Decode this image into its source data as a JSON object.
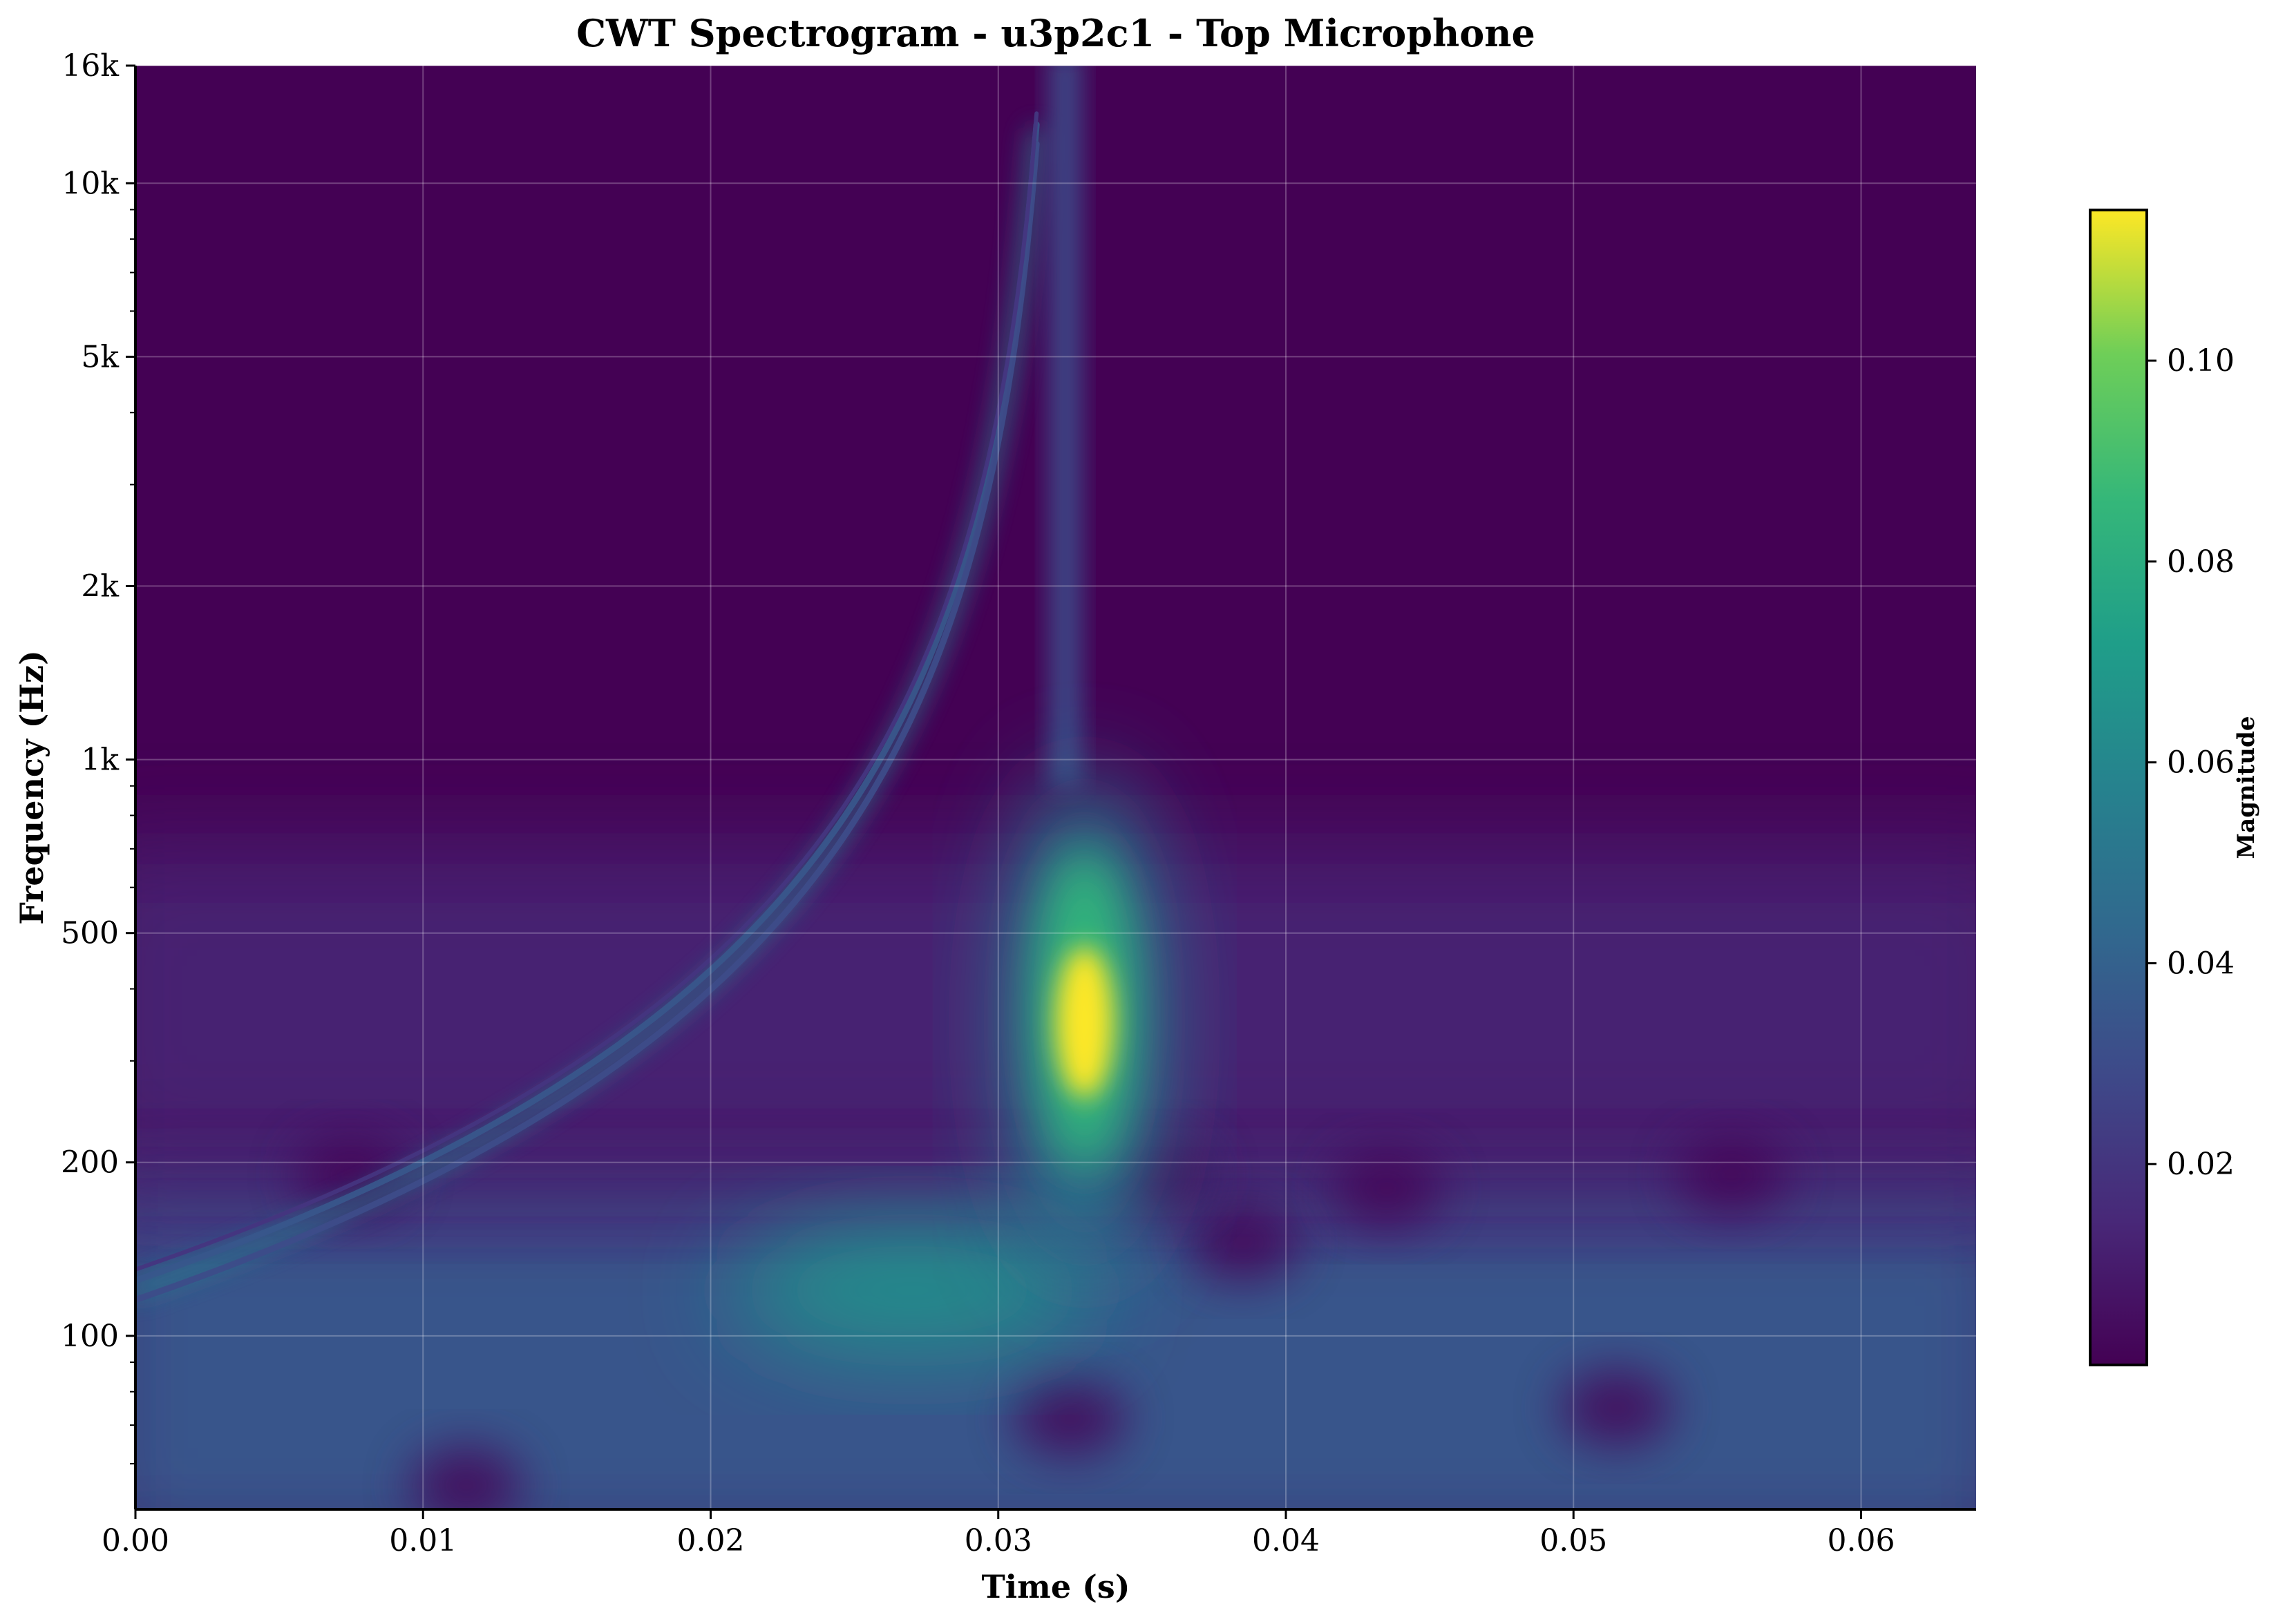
{
  "chart_data": {
    "type": "heatmap",
    "title": "CWT Spectrogram - u3p2c1 - Top Microphone",
    "xlabel": "Time (s)",
    "ylabel": "Frequency (Hz)",
    "xlim": [
      0.0,
      0.064
    ],
    "ylim": [
      50,
      16000
    ],
    "yscale": "log",
    "x_ticks": [
      0.0,
      0.01,
      0.02,
      0.03,
      0.04,
      0.05,
      0.06
    ],
    "x_tick_labels": [
      "0.00",
      "0.01",
      "0.02",
      "0.03",
      "0.04",
      "0.05",
      "0.06"
    ],
    "y_ticks": [
      100,
      200,
      500,
      1000,
      2000,
      5000,
      10000,
      16000
    ],
    "y_tick_labels": [
      "100",
      "200",
      "500",
      "1k",
      "2k",
      "5k",
      "10k",
      "16k"
    ],
    "grid": true,
    "colormap": "viridis",
    "colorbar": {
      "label": "Magnitude",
      "range": [
        0.0,
        0.115
      ],
      "ticks": [
        0.02,
        0.04,
        0.06,
        0.08,
        0.1
      ],
      "tick_labels": [
        "0.02",
        "0.04",
        "0.06",
        "0.08",
        "0.10"
      ]
    },
    "features": [
      {
        "name": "peak",
        "time": 0.033,
        "frequency": 350,
        "magnitude": 0.115
      },
      {
        "name": "chirp",
        "time_start": 0.0,
        "freq_start": 120,
        "time_end": 0.0315,
        "freq_end": 16000,
        "magnitude": 0.05
      },
      {
        "name": "low-frequency band",
        "time_range": [
          0.0,
          0.064
        ],
        "freq_range": [
          50,
          150
        ],
        "magnitude": 0.04
      }
    ]
  },
  "colors": {
    "background": "#440154",
    "peak": "#fde725",
    "mid": "#21918c",
    "grid": "#ffffff"
  }
}
